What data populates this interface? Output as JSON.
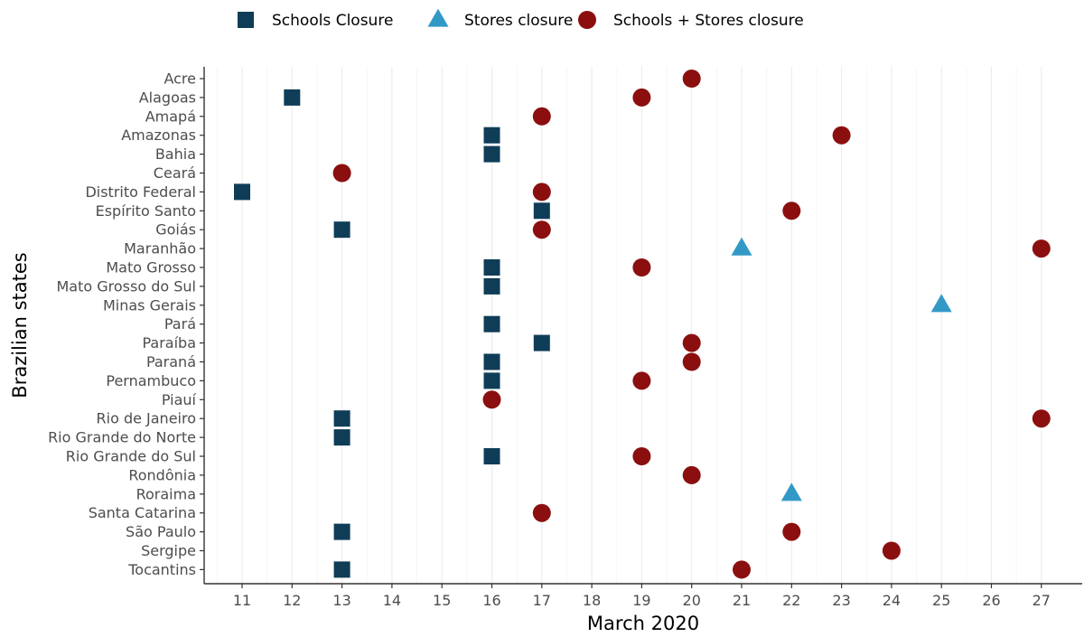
{
  "chart_data": {
    "type": "scatter",
    "xlabel": "March 2020",
    "ylabel": "Brazilian states",
    "x_ticks": [
      11,
      12,
      13,
      14,
      15,
      16,
      17,
      18,
      19,
      20,
      21,
      22,
      23,
      24,
      25,
      26,
      27
    ],
    "x_tick_labels": [
      "11",
      "12",
      "13",
      "14",
      "15",
      "16",
      "17",
      "18",
      "19",
      "20",
      "21",
      "22",
      "23",
      "24",
      "25",
      "26",
      "27"
    ],
    "xlim": [
      10.5,
      27.5
    ],
    "grid": "vertical",
    "legend_position": "top",
    "categories": [
      "Acre",
      "Alagoas",
      "Amapá",
      "Amazonas",
      "Bahia",
      "Ceará",
      "Distrito Federal",
      "Espírito Santo",
      "Goiás",
      "Maranhão",
      "Mato Grosso",
      "Mato Grosso do Sul",
      "Minas Gerais",
      "Pará",
      "Paraíba",
      "Paraná",
      "Pernambuco",
      "Piauí",
      "Rio de Janeiro",
      "Rio Grande do Norte",
      "Rio Grande do Sul",
      "Rondônia",
      "Roraima",
      "Santa Catarina",
      "São Paulo",
      "Sergipe",
      "Tocantins"
    ],
    "series": [
      {
        "name": "Schools Closure",
        "marker": "square",
        "color": "#0f3d57",
        "points": [
          {
            "state": "Alagoas",
            "x": 12
          },
          {
            "state": "Amazonas",
            "x": 16
          },
          {
            "state": "Bahia",
            "x": 16
          },
          {
            "state": "Distrito Federal",
            "x": 11
          },
          {
            "state": "Espírito Santo",
            "x": 17
          },
          {
            "state": "Goiás",
            "x": 13
          },
          {
            "state": "Mato Grosso",
            "x": 16
          },
          {
            "state": "Mato Grosso do Sul",
            "x": 16
          },
          {
            "state": "Pará",
            "x": 16
          },
          {
            "state": "Paraíba",
            "x": 17
          },
          {
            "state": "Paraná",
            "x": 16
          },
          {
            "state": "Pernambuco",
            "x": 16
          },
          {
            "state": "Rio de Janeiro",
            "x": 13
          },
          {
            "state": "Rio Grande do Norte",
            "x": 13
          },
          {
            "state": "Rio Grande do Sul",
            "x": 16
          },
          {
            "state": "São Paulo",
            "x": 13
          },
          {
            "state": "Tocantins",
            "x": 13
          }
        ]
      },
      {
        "name": "Stores closure",
        "marker": "triangle",
        "color": "#3299c7",
        "points": [
          {
            "state": "Maranhão",
            "x": 21
          },
          {
            "state": "Minas Gerais",
            "x": 25
          },
          {
            "state": "Roraima",
            "x": 22
          }
        ]
      },
      {
        "name": "Schools + Stores closure",
        "marker": "circle",
        "color": "#8b0f0f",
        "points": [
          {
            "state": "Acre",
            "x": 20
          },
          {
            "state": "Alagoas",
            "x": 19
          },
          {
            "state": "Amapá",
            "x": 17
          },
          {
            "state": "Amazonas",
            "x": 23
          },
          {
            "state": "Ceará",
            "x": 13
          },
          {
            "state": "Distrito Federal",
            "x": 17
          },
          {
            "state": "Espírito Santo",
            "x": 22
          },
          {
            "state": "Goiás",
            "x": 17
          },
          {
            "state": "Maranhão",
            "x": 27
          },
          {
            "state": "Mato Grosso",
            "x": 19
          },
          {
            "state": "Paraíba",
            "x": 20
          },
          {
            "state": "Paraná",
            "x": 20
          },
          {
            "state": "Pernambuco",
            "x": 19
          },
          {
            "state": "Piauí",
            "x": 16
          },
          {
            "state": "Rio de Janeiro",
            "x": 27
          },
          {
            "state": "Rio Grande do Sul",
            "x": 19
          },
          {
            "state": "Rondônia",
            "x": 20
          },
          {
            "state": "Santa Catarina",
            "x": 17
          },
          {
            "state": "São Paulo",
            "x": 22
          },
          {
            "state": "Sergipe",
            "x": 24
          },
          {
            "state": "Tocantins",
            "x": 21
          }
        ]
      }
    ]
  }
}
